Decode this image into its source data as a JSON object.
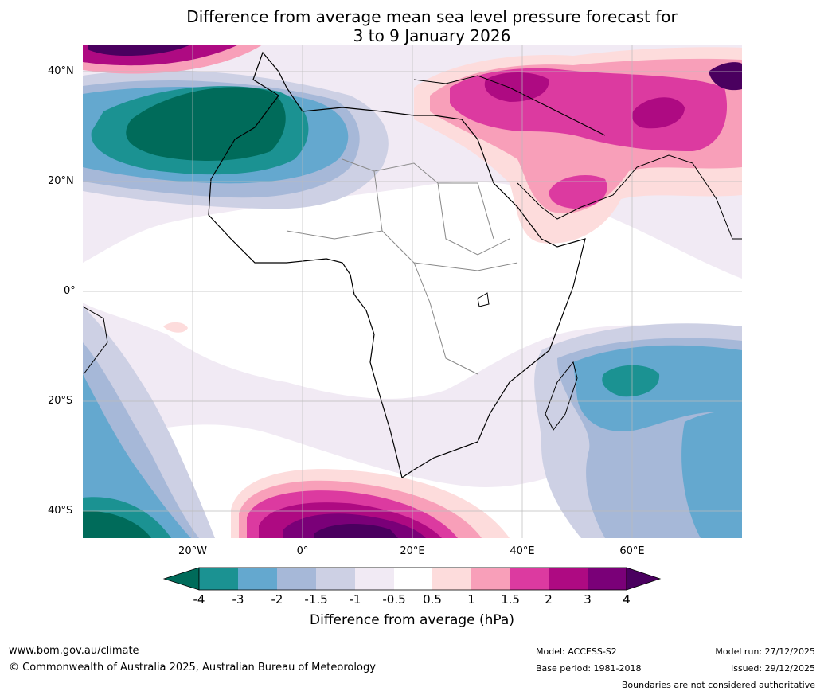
{
  "title": {
    "line1": "Difference from average mean sea level pressure forecast for",
    "line2": "3 to 9 January 2026"
  },
  "map": {
    "lat_labels": [
      "40°N",
      "20°N",
      "0°",
      "20°S",
      "40°S"
    ],
    "lon_labels": [
      "20°W",
      "0°",
      "20°E",
      "40°E",
      "60°E"
    ]
  },
  "colorbar": {
    "title": "Difference from average (hPa)",
    "ticks": [
      "-4",
      "-3",
      "-2",
      "-1.5",
      "-1",
      "-0.5",
      "0.5",
      "1",
      "1.5",
      "2",
      "3",
      "4"
    ],
    "colors": {
      "below_minus4": "#006b5a",
      "m4_m3": "#1b9292",
      "m3_m2": "#64a8cf",
      "m2_m15": "#a6b8d8",
      "m15_m1": "#cdd0e4",
      "m1_m05": "#f1eaf4",
      "m05_05": "#ffffff",
      "p05_1": "#fddcdc",
      "p1_15": "#f89fb9",
      "p15_2": "#dc3aa0",
      "p2_3": "#ae0a82",
      "p3_4": "#7a0078",
      "above4": "#4a005f"
    }
  },
  "footer": {
    "website": "www.bom.gov.au/climate",
    "copyright": "© Commonwealth of Australia 2025, Australian Bureau of Meteorology",
    "model": "Model: ACCESS-S2",
    "base_period": "Base period: 1981-2018",
    "model_run": "Model run: 27/12/2025",
    "issued": "Issued: 29/12/2025",
    "disclaimer": "Boundaries are not considered authoritative"
  }
}
